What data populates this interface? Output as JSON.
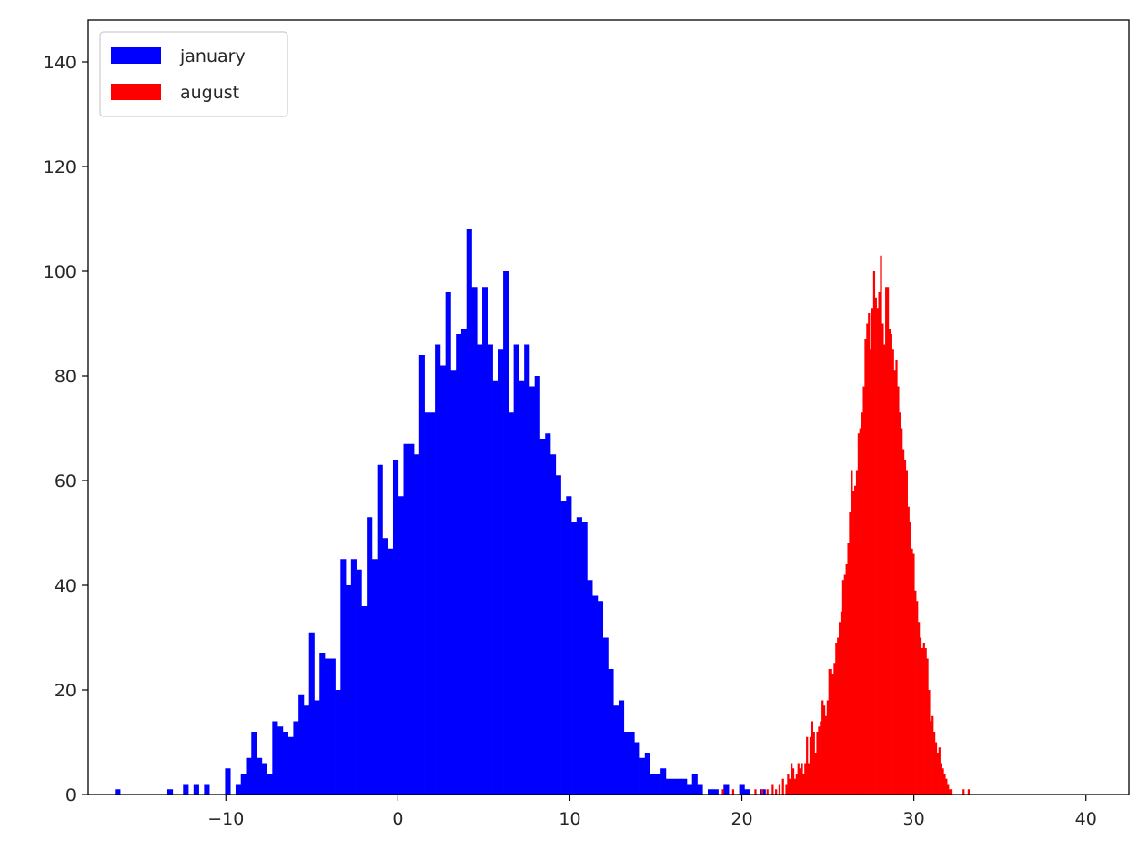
{
  "chart_data": {
    "type": "bar",
    "title": "",
    "xlabel": "",
    "ylabel": "",
    "xlim": [
      -18.0,
      42.5
    ],
    "ylim": [
      0,
      148
    ],
    "xticks": [
      -10,
      0,
      10,
      20,
      30,
      40
    ],
    "xtick_labels": [
      "−10",
      "0",
      "10",
      "20",
      "30",
      "40"
    ],
    "yticks": [
      0,
      20,
      40,
      60,
      80,
      100,
      120,
      140
    ],
    "ytick_labels": [
      "0",
      "20",
      "40",
      "60",
      "80",
      "100",
      "120",
      "140"
    ],
    "grid": false,
    "legend": {
      "placement": "top-left",
      "entries": [
        {
          "label": "january",
          "color": "#0000ff"
        },
        {
          "label": "august",
          "color": "#ff0000"
        }
      ]
    },
    "series": [
      {
        "name": "january",
        "color": "#0000ff",
        "bin_start": -16.45,
        "bin_width": 0.305,
        "counts": [
          1,
          0,
          0,
          0,
          0,
          0,
          0,
          0,
          0,
          0,
          1,
          0,
          0,
          2,
          0,
          2,
          0,
          2,
          0,
          0,
          0,
          5,
          0,
          2,
          4,
          7,
          12,
          7,
          6,
          4,
          14,
          13,
          12,
          11,
          14,
          19,
          17,
          31,
          18,
          27,
          26,
          26,
          20,
          45,
          40,
          45,
          43,
          36,
          53,
          45,
          63,
          49,
          47,
          64,
          57,
          67,
          67,
          65,
          84,
          73,
          73,
          86,
          82,
          96,
          81,
          88,
          89,
          108,
          97,
          86,
          97,
          86,
          79,
          85,
          100,
          73,
          86,
          79,
          86,
          78,
          80,
          68,
          69,
          65,
          61,
          56,
          57,
          52,
          53,
          52,
          41,
          38,
          37,
          30,
          24,
          17,
          18,
          12,
          12,
          10,
          7,
          8,
          4,
          4,
          5,
          3,
          3,
          3,
          3,
          2,
          4,
          2,
          0,
          1,
          1,
          0,
          2,
          0,
          0,
          2,
          1,
          0,
          0,
          1,
          0,
          0,
          0,
          0,
          1
        ]
      },
      {
        "name": "august",
        "color": "#ff0000",
        "bin_start": 18.73,
        "bin_width": 0.1,
        "counts": [
          0,
          1,
          0,
          0,
          0,
          0,
          0,
          1,
          0,
          0,
          0,
          0,
          0,
          0,
          0,
          0,
          0,
          0,
          0,
          0,
          1,
          0,
          0,
          0,
          1,
          0,
          0,
          1,
          0,
          0,
          2,
          0,
          1,
          0,
          2,
          0,
          3,
          0,
          2,
          4,
          3,
          6,
          5,
          3,
          4,
          6,
          5,
          6,
          4,
          6,
          11,
          6,
          11,
          14,
          12,
          8,
          12,
          13,
          14,
          18,
          17,
          15,
          18,
          24,
          24,
          23,
          25,
          29,
          30,
          33,
          35,
          41,
          42,
          44,
          48,
          54,
          62,
          58,
          59,
          62,
          69,
          70,
          73,
          78,
          87,
          90,
          92,
          85,
          93,
          100,
          95,
          93,
          96,
          103,
          90,
          86,
          97,
          97,
          89,
          88,
          85,
          81,
          83,
          78,
          73,
          70,
          66,
          64,
          62,
          55,
          52,
          47,
          46,
          39,
          37,
          33,
          30,
          28,
          29,
          28,
          26,
          20,
          14,
          15,
          12,
          10,
          8,
          9,
          6,
          5,
          4,
          3,
          2,
          1,
          1,
          0,
          0,
          0,
          0,
          0,
          0,
          1,
          0,
          0,
          1
        ]
      }
    ]
  }
}
